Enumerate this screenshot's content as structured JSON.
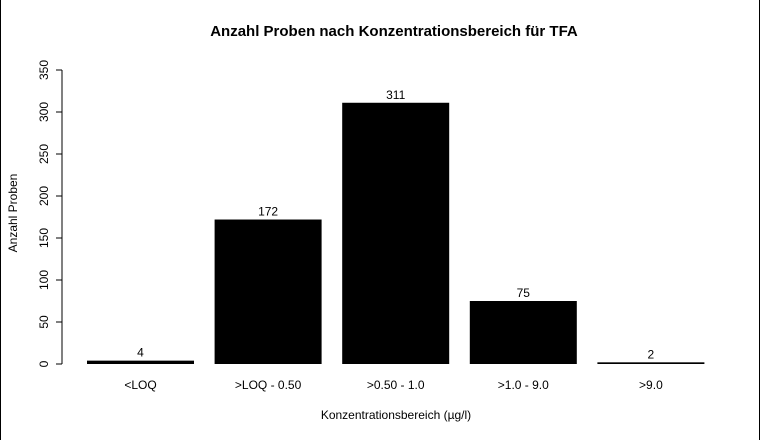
{
  "chart_data": {
    "type": "bar",
    "title": "Anzahl Proben nach Konzentrationsbereich für TFA",
    "xlabel": "Konzentrationsbereich (µg/l)",
    "ylabel": "Anzahl Proben",
    "categories": [
      "<LOQ",
      ">LOQ - 0.50",
      ">0.50 - 1.0",
      ">1.0 - 9.0",
      ">9.0"
    ],
    "values": [
      4,
      172,
      311,
      75,
      2
    ],
    "data_labels": [
      "4",
      "172",
      "311",
      "75",
      "2"
    ],
    "ylim": [
      0,
      350
    ],
    "yticks": [
      0,
      50,
      100,
      150,
      200,
      250,
      300,
      350
    ],
    "ytick_labels": [
      "0",
      "50",
      "100",
      "150",
      "200",
      "250",
      "300",
      "350"
    ],
    "grid": false,
    "bar_color": "#000000"
  }
}
